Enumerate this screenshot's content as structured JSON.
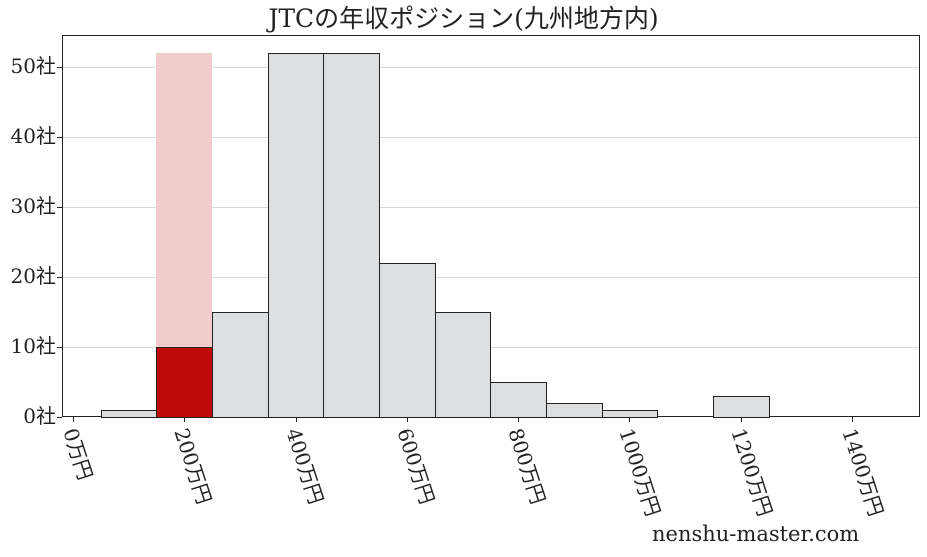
{
  "chart_data": {
    "type": "bar",
    "title": "JTCの年収ポジション(九州地方内)",
    "xlabel": "",
    "ylabel": "",
    "x_tick_labels": [
      "0万円",
      "200万円",
      "400万円",
      "600万円",
      "800万円",
      "1000万円",
      "1200万円",
      "1400万円"
    ],
    "x_tick_values": [
      0,
      200,
      400,
      600,
      800,
      1000,
      1200,
      1400
    ],
    "y_tick_labels": [
      "0社",
      "10社",
      "20社",
      "30社",
      "40社",
      "50社"
    ],
    "y_tick_values": [
      0,
      10,
      20,
      30,
      40,
      50
    ],
    "ylim": [
      0,
      54.5
    ],
    "xlim": [
      -20,
      1520
    ],
    "bin_width": 100,
    "bins": [
      {
        "start": 50,
        "end": 150,
        "count": 1
      },
      {
        "start": 150,
        "end": 250,
        "count": 10,
        "highlight": true
      },
      {
        "start": 250,
        "end": 350,
        "count": 15
      },
      {
        "start": 350,
        "end": 450,
        "count": 52
      },
      {
        "start": 450,
        "end": 550,
        "count": 52
      },
      {
        "start": 550,
        "end": 650,
        "count": 22
      },
      {
        "start": 650,
        "end": 750,
        "count": 15
      },
      {
        "start": 750,
        "end": 850,
        "count": 5
      },
      {
        "start": 850,
        "end": 950,
        "count": 2
      },
      {
        "start": 950,
        "end": 1050,
        "count": 1
      },
      {
        "start": 1050,
        "end": 1150,
        "count": 0
      },
      {
        "start": 1150,
        "end": 1250,
        "count": 3
      }
    ],
    "highlight_band": {
      "start": 150,
      "end": 250,
      "height": 52,
      "color": "#f0cccc"
    },
    "colors": {
      "bar": "#dddee0",
      "highlight_bar": "#bf0a0a",
      "edge": "#222222",
      "grid": "#d9d9d9"
    },
    "grid": "horizontal",
    "legend": null
  },
  "watermark": "nenshu-master.com"
}
